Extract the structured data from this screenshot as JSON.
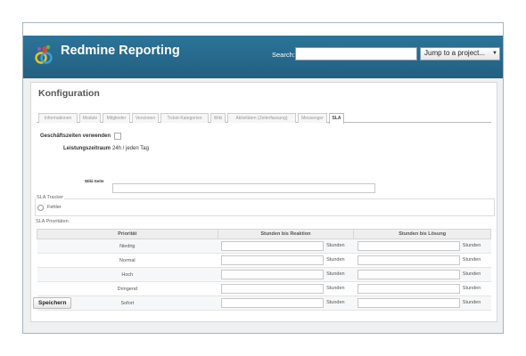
{
  "header": {
    "app_title": "Redmine Reporting",
    "search_label": "Search:",
    "search_value": "",
    "jump_label": "Jump to a project..."
  },
  "page": {
    "title": "Konfiguration"
  },
  "tabs": [
    {
      "label": "Informationen"
    },
    {
      "label": "Module"
    },
    {
      "label": "Mitglieder"
    },
    {
      "label": "Versionen"
    },
    {
      "label": "Ticket-Kategorien"
    },
    {
      "label": "Wiki"
    },
    {
      "label": "Aktivitäten (Zeiterfassung)"
    },
    {
      "label": "Messenger"
    },
    {
      "label": "SLA"
    }
  ],
  "settings": {
    "business_hours_label": "Geschäftszeiten verwenden",
    "business_hours_checked": false,
    "service_period_label": "Leistungszeitraum",
    "service_period_value": "24h / jeden Tag",
    "wiki_page_label": "Wiki-Seite",
    "wiki_page_value": ""
  },
  "sla_tracker": {
    "legend": "SLA Tracker",
    "options": [
      {
        "label": "Fehler",
        "checked": false
      }
    ]
  },
  "sla_priorities": {
    "legend": "SLA Prioritäten",
    "columns": [
      "Priorität",
      "Stunden bis Reaktion",
      "Stunden bis Lösung"
    ],
    "unit": "Stunden",
    "rows": [
      {
        "priority": "Niedrig",
        "reaction": "",
        "resolution": ""
      },
      {
        "priority": "Normal",
        "reaction": "",
        "resolution": ""
      },
      {
        "priority": "Hoch",
        "reaction": "",
        "resolution": ""
      },
      {
        "priority": "Dringend",
        "reaction": "",
        "resolution": ""
      },
      {
        "priority": "Sofort",
        "reaction": "",
        "resolution": ""
      }
    ]
  },
  "actions": {
    "save_label": "Speichern"
  },
  "colors": {
    "header_bg": "#2a6f93",
    "page_bg": "#eef0f2",
    "table_header_bg": "#eeeeee"
  },
  "icons": {
    "logo": "redmine-logo-icon",
    "select_arrow": "chevron-down-icon"
  }
}
